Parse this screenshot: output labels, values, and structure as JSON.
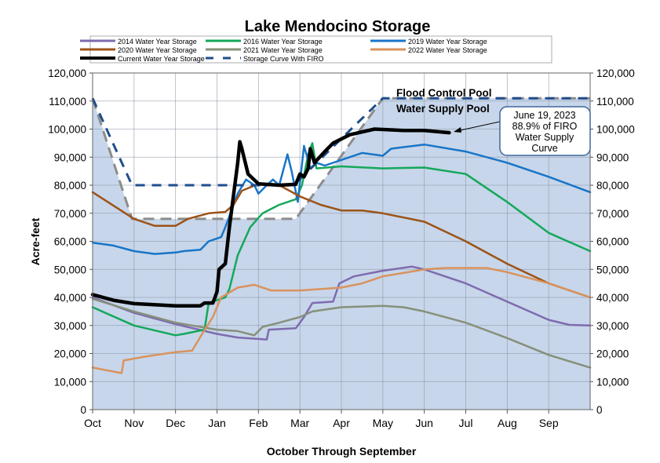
{
  "chart_data": {
    "type": "line",
    "title": "Lake Mendocino Storage",
    "xlabel": "October Through September",
    "ylabel": "Acre-feet",
    "x_units": "months since Oct 1",
    "xlim": [
      0,
      12
    ],
    "ylim": [
      0,
      120000
    ],
    "grid": true,
    "legend_placement": "top",
    "x_tick_labels": [
      "Oct",
      "Nov",
      "Dec",
      "Jan",
      "Feb",
      "Mar",
      "Apr",
      "May",
      "Jun",
      "Jul",
      "Aug",
      "Sep"
    ],
    "y_tick_labels": [
      "0",
      "10,000",
      "20,000",
      "30,000",
      "40,000",
      "50,000",
      "60,000",
      "70,000",
      "80,000",
      "90,000",
      "100,000",
      "110,000",
      "120,000"
    ],
    "colors": {
      "fill": "#c7d6ea",
      "grid": "#8b95a5"
    },
    "guide_curves": [
      {
        "name": "Flood control guide curve",
        "color": "#8c8c8c",
        "points": [
          [
            0,
            111000
          ],
          [
            0.95,
            68000
          ],
          [
            4.9,
            68000
          ],
          [
            7.0,
            111000
          ],
          [
            12,
            111000
          ]
        ]
      }
    ],
    "series": [
      {
        "name": "2014 Water Year Storage",
        "color": "#7e6bb0",
        "width": 2.5,
        "dash": false,
        "points": [
          [
            0,
            40000
          ],
          [
            1,
            34500
          ],
          [
            2,
            30500
          ],
          [
            3,
            27000
          ],
          [
            3.5,
            25700
          ],
          [
            4.2,
            25000
          ],
          [
            4.25,
            28500
          ],
          [
            4.9,
            29000
          ],
          [
            5.1,
            33000
          ],
          [
            5.3,
            38000
          ],
          [
            5.8,
            38500
          ],
          [
            5.95,
            45000
          ],
          [
            6.3,
            47500
          ],
          [
            7,
            49500
          ],
          [
            7.7,
            51000
          ],
          [
            8,
            50000
          ],
          [
            9,
            45000
          ],
          [
            10,
            38500
          ],
          [
            11,
            32000
          ],
          [
            11.5,
            30200
          ],
          [
            12,
            30000
          ]
        ]
      },
      {
        "name": "2016 Water Year Storage",
        "color": "#14a85a",
        "width": 2.5,
        "dash": false,
        "points": [
          [
            0,
            36500
          ],
          [
            1,
            30000
          ],
          [
            2,
            26500
          ],
          [
            2.2,
            27000
          ],
          [
            2.7,
            28500
          ],
          [
            2.8,
            38000
          ],
          [
            3,
            39000
          ],
          [
            3.2,
            40000
          ],
          [
            3.3,
            43000
          ],
          [
            3.5,
            55000
          ],
          [
            3.8,
            65000
          ],
          [
            4.1,
            70000
          ],
          [
            4.5,
            73000
          ],
          [
            4.9,
            75000
          ],
          [
            5.05,
            80000
          ],
          [
            5.2,
            91000
          ],
          [
            5.3,
            95000
          ],
          [
            5.4,
            86000
          ],
          [
            6,
            86700
          ],
          [
            7,
            86000
          ],
          [
            8,
            86300
          ],
          [
            9,
            84000
          ],
          [
            10,
            74000
          ],
          [
            11,
            63000
          ],
          [
            12,
            56500
          ]
        ]
      },
      {
        "name": "2019 Water Year Storage",
        "color": "#1875c8",
        "width": 2.5,
        "dash": false,
        "points": [
          [
            0,
            59500
          ],
          [
            0.5,
            58500
          ],
          [
            1,
            56500
          ],
          [
            1.5,
            55500
          ],
          [
            2,
            56000
          ],
          [
            2.2,
            56500
          ],
          [
            2.6,
            57000
          ],
          [
            2.8,
            60000
          ],
          [
            3,
            61000
          ],
          [
            3.1,
            61500
          ],
          [
            3.2,
            65000
          ],
          [
            3.5,
            77000
          ],
          [
            3.7,
            82000
          ],
          [
            3.9,
            80000
          ],
          [
            4,
            77000
          ],
          [
            4.2,
            80000
          ],
          [
            4.35,
            82000
          ],
          [
            4.5,
            80000
          ],
          [
            4.7,
            91000
          ],
          [
            4.8,
            85000
          ],
          [
            4.95,
            74000
          ],
          [
            5.1,
            94000
          ],
          [
            5.25,
            86000
          ],
          [
            5.4,
            88000
          ],
          [
            5.6,
            87000
          ],
          [
            6,
            89000
          ],
          [
            6.5,
            91500
          ],
          [
            7,
            90500
          ],
          [
            7.2,
            93000
          ],
          [
            8,
            94500
          ],
          [
            9,
            92000
          ],
          [
            10,
            88000
          ],
          [
            11,
            83000
          ],
          [
            12,
            77500
          ]
        ]
      },
      {
        "name": "2020 Water Year Storage",
        "color": "#9c5318",
        "width": 2.5,
        "dash": false,
        "points": [
          [
            0,
            77500
          ],
          [
            1,
            68000
          ],
          [
            1.5,
            65500
          ],
          [
            2,
            65500
          ],
          [
            2.3,
            68000
          ],
          [
            2.8,
            70000
          ],
          [
            3.2,
            70500
          ],
          [
            3.4,
            73000
          ],
          [
            3.6,
            78000
          ],
          [
            4,
            80500
          ],
          [
            4.5,
            80000
          ],
          [
            5,
            76000
          ],
          [
            5.5,
            73000
          ],
          [
            6,
            71000
          ],
          [
            6.5,
            71000
          ],
          [
            7,
            70000
          ],
          [
            8,
            67000
          ],
          [
            9,
            60000
          ],
          [
            10,
            52000
          ],
          [
            11,
            45000
          ],
          [
            12,
            40000
          ]
        ]
      },
      {
        "name": "2021 Water Year Storage",
        "color": "#86907a",
        "width": 2.5,
        "dash": false,
        "points": [
          [
            0,
            39500
          ],
          [
            1,
            35000
          ],
          [
            2,
            31000
          ],
          [
            3,
            28500
          ],
          [
            3.5,
            28000
          ],
          [
            3.9,
            26500
          ],
          [
            4.1,
            29500
          ],
          [
            4.5,
            31000
          ],
          [
            5,
            33000
          ],
          [
            5.3,
            35000
          ],
          [
            6,
            36500
          ],
          [
            7,
            37000
          ],
          [
            7.5,
            36500
          ],
          [
            8,
            35000
          ],
          [
            9,
            31000
          ],
          [
            10,
            25500
          ],
          [
            11,
            19500
          ],
          [
            12,
            15000
          ]
        ]
      },
      {
        "name": "2022 Water Year Storage",
        "color": "#d9935e",
        "width": 2.5,
        "dash": false,
        "points": [
          [
            0,
            15000
          ],
          [
            0.7,
            13000
          ],
          [
            0.75,
            17500
          ],
          [
            1.3,
            19000
          ],
          [
            2,
            20500
          ],
          [
            2.4,
            21000
          ],
          [
            2.6,
            26000
          ],
          [
            2.9,
            33000
          ],
          [
            3.1,
            40000
          ],
          [
            3.5,
            43500
          ],
          [
            3.9,
            44500
          ],
          [
            4.3,
            42500
          ],
          [
            5,
            42500
          ],
          [
            6,
            43500
          ],
          [
            6.5,
            45000
          ],
          [
            7,
            47500
          ],
          [
            8,
            50000
          ],
          [
            8.5,
            50500
          ],
          [
            9.5,
            50500
          ],
          [
            10,
            49000
          ],
          [
            11,
            45000
          ],
          [
            12,
            40000
          ]
        ]
      },
      {
        "name": "Current Water Year Storage",
        "color": "#000000",
        "width": 4.5,
        "dash": false,
        "points": [
          [
            0,
            41000
          ],
          [
            0.5,
            39000
          ],
          [
            1,
            37800
          ],
          [
            2,
            37000
          ],
          [
            2.6,
            37000
          ],
          [
            2.7,
            38000
          ],
          [
            2.9,
            38000
          ],
          [
            2.95,
            40000
          ],
          [
            3.0,
            42000
          ],
          [
            3.05,
            50000
          ],
          [
            3.2,
            52000
          ],
          [
            3.3,
            65000
          ],
          [
            3.5,
            88000
          ],
          [
            3.55,
            95500
          ],
          [
            3.6,
            93000
          ],
          [
            3.75,
            84000
          ],
          [
            4,
            80500
          ],
          [
            4.5,
            80000
          ],
          [
            4.9,
            80300
          ],
          [
            5.0,
            84000
          ],
          [
            5.1,
            83000
          ],
          [
            5.2,
            86000
          ],
          [
            5.25,
            93000
          ],
          [
            5.35,
            88000
          ],
          [
            5.6,
            92000
          ],
          [
            5.8,
            95000
          ],
          [
            6.2,
            98000
          ],
          [
            6.8,
            100000
          ],
          [
            7.5,
            99500
          ],
          [
            8,
            99500
          ],
          [
            8.6,
            98700
          ]
        ]
      },
      {
        "name": "Storage Curve With FIRO",
        "color": "#1f4e8c",
        "width": 3,
        "dash": true,
        "points": [
          [
            0,
            111000
          ],
          [
            0.95,
            80000
          ],
          [
            4.85,
            80000
          ],
          [
            7.0,
            111000
          ],
          [
            12,
            111000
          ]
        ]
      }
    ],
    "annotations": {
      "flood_pool": "Flood Control Pool",
      "supply_pool": "Water Supply Pool",
      "callout_lines": [
        "June 19, 2023",
        "88.9% of FIRO",
        "Water Supply",
        "Curve"
      ]
    }
  }
}
